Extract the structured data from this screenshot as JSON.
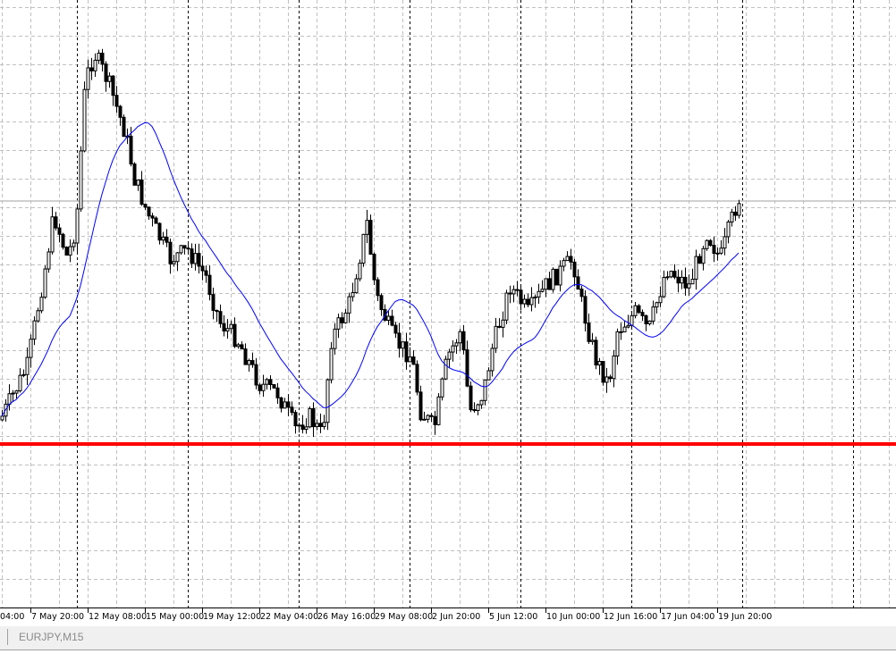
{
  "chart_data": {
    "type": "candlestick",
    "symbol": "EURJPY",
    "timeframe": "M15",
    "x_tick_labels": [
      "04:00",
      "7 May 20:00",
      "12 May 08:00",
      "15 May 00:00",
      "19 May 12:00",
      "22 May 04:00",
      "26 May 16:00",
      "29 May 08:00",
      "2 Jun 20:00",
      "5 Jun 12:00",
      "10 Jun 00:00",
      "12 Jun 16:00",
      "17 Jun 04:00",
      "19 Jun 20:00"
    ],
    "indicators": [
      {
        "type": "moving-average",
        "color": "#0000ff"
      }
    ],
    "horizontal_lines": [
      {
        "color": "#ff0000",
        "role": "support"
      },
      {
        "color": "#c0c0c0",
        "role": "current-price"
      }
    ],
    "grid": true,
    "colors": {
      "bull_body": "#ffffff",
      "bear_body": "#000000",
      "wick": "#000000",
      "grid": "#c0c0c0",
      "period_separator": "#000000"
    }
  },
  "tabs": [
    {
      "label": "EURJPY,M15"
    }
  ]
}
